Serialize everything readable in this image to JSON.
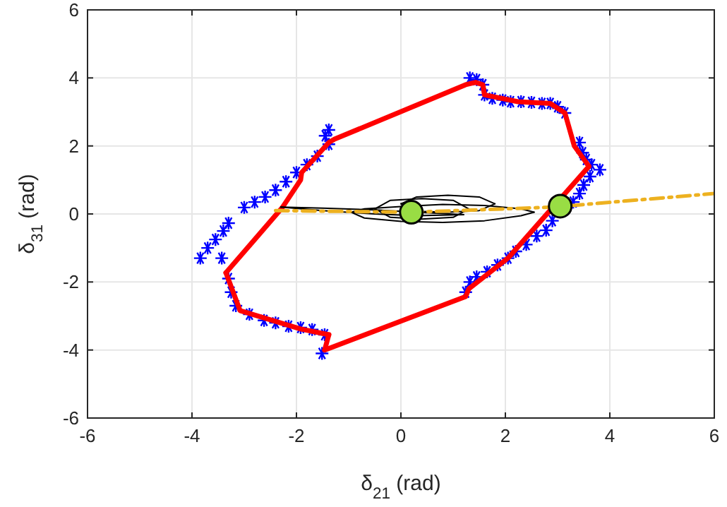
{
  "chart_data": {
    "type": "scatter",
    "xlabel": "δ$_{21}$ (rad)",
    "ylabel": "δ$_{31}$ (rad)",
    "xlim": [
      -6,
      6
    ],
    "ylim": [
      -6,
      6
    ],
    "xticks": [
      -6,
      -4,
      -2,
      0,
      2,
      4,
      6
    ],
    "yticks": [
      -6,
      -4,
      -2,
      0,
      2,
      4,
      6
    ],
    "grid": true,
    "series": [
      {
        "marker": "cross",
        "color": "#0000ff",
        "x": [
          1.32,
          1.45,
          1.57,
          1.6,
          1.75,
          1.95,
          2.1,
          2.3,
          2.5,
          2.7,
          2.86,
          3.0,
          3.14,
          3.42,
          3.48,
          3.55,
          3.65,
          3.81,
          3.62,
          3.5,
          3.42,
          3.3,
          2.9,
          2.78,
          2.6,
          2.4,
          2.2,
          2.05,
          1.85,
          1.65,
          1.45,
          1.32,
          1.24,
          -1.51,
          -1.46,
          -1.7,
          -1.92,
          -2.15,
          -2.4,
          -2.62,
          -2.9,
          -3.16,
          -3.25,
          -3.3,
          -3.43,
          -3.84,
          -3.7,
          -3.55,
          -3.4,
          -3.3,
          -3.0,
          -2.8,
          -2.6,
          -2.4,
          -2.2,
          -2.0,
          -1.8,
          -1.6,
          -1.38,
          -1.45,
          -1.38
        ],
        "values": [
          4.0,
          3.95,
          3.8,
          3.5,
          3.4,
          3.35,
          3.3,
          3.3,
          3.28,
          3.25,
          3.25,
          3.15,
          2.97,
          2.1,
          1.8,
          1.6,
          1.45,
          1.3,
          1.1,
          0.85,
          0.6,
          0.35,
          -0.2,
          -0.48,
          -0.65,
          -0.9,
          -1.1,
          -1.3,
          -1.5,
          -1.7,
          -1.85,
          -2.0,
          -2.3,
          -4.1,
          -3.55,
          -3.4,
          -3.34,
          -3.3,
          -3.2,
          -3.13,
          -2.95,
          -2.7,
          -2.3,
          -1.9,
          -1.3,
          -1.3,
          -1.0,
          -0.75,
          -0.5,
          -0.27,
          0.19,
          0.35,
          0.5,
          0.7,
          0.95,
          1.22,
          1.45,
          1.7,
          2.05,
          2.3,
          2.47
        ]
      },
      {
        "type": "line",
        "marker": "none",
        "line_style": "solid",
        "color": "#ff0000",
        "x": [
          -3.35,
          -2.81,
          -2.27,
          -1.92,
          -1.9,
          -1.38,
          -1.27,
          1.24,
          1.43,
          1.57,
          1.6,
          2.24,
          2.86,
          3.14,
          3.32,
          3.6
        ],
        "values": [
          -1.73,
          -0.77,
          0.19,
          1.0,
          1.22,
          2.1,
          2.2,
          3.8,
          3.87,
          3.8,
          3.5,
          3.3,
          3.25,
          2.97,
          2.0,
          1.4
        ]
      },
      {
        "type": "line",
        "marker": "none",
        "line_style": "solid",
        "color": "#ff0000",
        "x": [
          -1.46,
          1.24,
          1.3,
          2.05,
          3.05,
          3.6
        ],
        "values": [
          -4.0,
          -2.43,
          -2.2,
          -1.3,
          null,
          1.4
        ]
      },
      {
        "type": "line",
        "marker": "none",
        "line_style": "solid",
        "color": "#ff0000",
        "x": [
          -3.35,
          -3.08,
          -1.92,
          -1.38
        ],
        "values": [
          -1.73,
          -2.84,
          -3.38,
          -3.55
        ]
      },
      {
        "type": "line",
        "marker": "none",
        "line_style": "solid",
        "color": "#ff0000",
        "x": [
          -1.46,
          -1.38
        ],
        "values": [
          -4.0,
          -3.55
        ]
      },
      {
        "type": "line",
        "marker": "none",
        "line_style": "solid",
        "color": "#000000",
        "x": [
          -0.95,
          -0.7,
          0,
          0.8,
          1.6,
          2.3,
          2.55
        ],
        "values": [
          0.05,
          0.15,
          0.22,
          0.28,
          0.25,
          0.15,
          0.05
        ]
      },
      {
        "type": "line",
        "marker": "none",
        "line_style": "solid",
        "color": "#000000",
        "x": [
          -0.95,
          -0.7,
          0,
          0.8,
          1.6,
          2.3,
          2.55
        ],
        "values": [
          0.05,
          -0.12,
          -0.22,
          -0.25,
          -0.2,
          -0.05,
          0.05
        ]
      },
      {
        "type": "line",
        "marker": "none",
        "line_style": "solid",
        "color": "#000000",
        "x": [
          -2.3,
          -1.5,
          -0.5,
          0.3,
          1.2
        ],
        "values": [
          0.2,
          0.17,
          0.12,
          0.05,
          -0.02
        ]
      },
      {
        "type": "line",
        "marker": "none",
        "line_style": "solid",
        "color": "#000000",
        "x": [
          -2.3,
          -1.5,
          -0.5,
          0.3,
          1.2
        ],
        "values": [
          0.2,
          0.1,
          0.0,
          -0.05,
          -0.02
        ]
      },
      {
        "type": "line",
        "marker": "none",
        "line_style": "solid",
        "color": "#000000",
        "x": [
          -0.5,
          -0.2,
          0.4,
          1.0,
          1.3
        ],
        "values": [
          0.15,
          0.4,
          0.45,
          0.4,
          0.15
        ]
      },
      {
        "type": "line",
        "marker": "none",
        "line_style": "solid",
        "color": "#000000",
        "x": [
          -0.5,
          -0.2,
          0.4,
          1.0,
          1.3
        ],
        "values": [
          0.15,
          -0.1,
          -0.15,
          -0.1,
          0.15
        ]
      },
      {
        "type": "line",
        "marker": "none",
        "line_style": "solid",
        "color": "#000000",
        "x": [
          0,
          0.3,
          0.9,
          1.5,
          1.8
        ],
        "values": [
          0.3,
          0.5,
          0.55,
          0.5,
          0.3
        ]
      },
      {
        "type": "line",
        "marker": "none",
        "line_style": "solid",
        "color": "#000000",
        "x": [
          0,
          0.3,
          0.9,
          1.5,
          1.8
        ],
        "values": [
          0.3,
          0.08,
          0.05,
          0.1,
          0.3
        ]
      },
      {
        "type": "line",
        "marker": "none",
        "line_style": "dashed",
        "color": "#edb120",
        "x": [
          -2.4,
          0.2,
          2.9,
          6
        ],
        "values": [
          0.1,
          0.05,
          0.2,
          0.6
        ]
      },
      {
        "marker": "circle",
        "color": "#99dd44",
        "x": [
          0.2,
          3.05
        ],
        "values": [
          0.05,
          0.23
        ]
      }
    ]
  }
}
